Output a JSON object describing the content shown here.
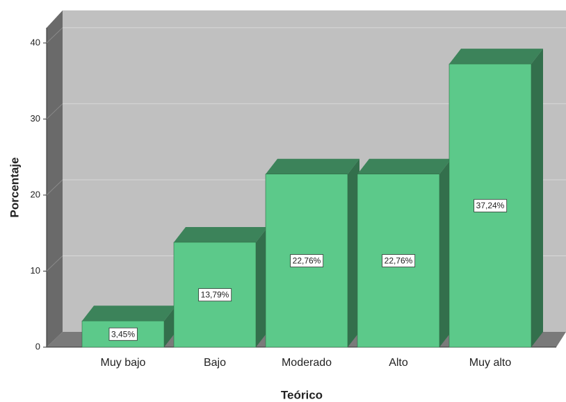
{
  "chart_data": {
    "type": "bar",
    "x_label": "Teórico",
    "y_label": "Porcentaje",
    "categories": [
      "Muy bajo",
      "Bajo",
      "Moderado",
      "Alto",
      "Muy alto"
    ],
    "values": [
      3.45,
      13.79,
      22.76,
      22.76,
      37.24
    ],
    "value_labels": [
      "3,45%",
      "13,79%",
      "22,76%",
      "22,76%",
      "37,24%"
    ],
    "color": "#5cc98a",
    "ylim": [
      0,
      42
    ],
    "yticks": [
      0,
      10,
      20,
      30,
      40
    ],
    "grid": true
  }
}
